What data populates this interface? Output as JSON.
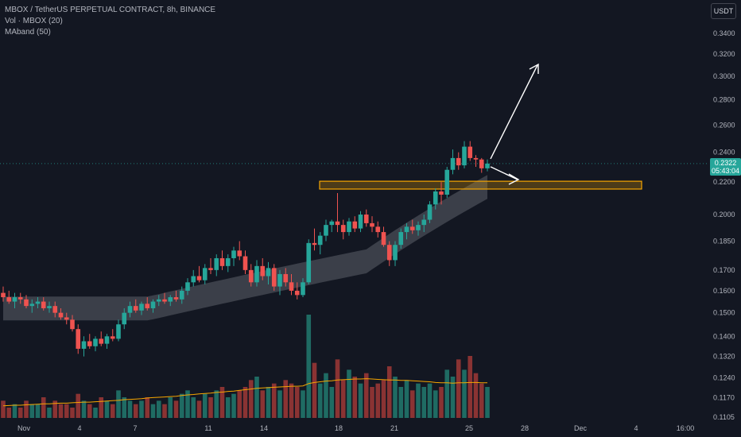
{
  "legend": {
    "title": "MBOX / TetherUS PERPETUAL CONTRACT, 8h, BINANCE",
    "vol": "Vol · MBOX (20)",
    "maband": "MAband (50)"
  },
  "currency_button": "USDT",
  "last_price": {
    "price": "0.2322",
    "countdown": "05:43:04"
  },
  "colors": {
    "up": "#26a69a",
    "down": "#ef5350",
    "bg": "#131722",
    "zone": "#f7a600",
    "axis_text": "#b2b5be"
  },
  "chart_data": {
    "type": "candlestick",
    "y_scale": "log",
    "y_ticks": [
      "0.3400",
      "0.3200",
      "0.3000",
      "0.2800",
      "0.2600",
      "0.2400",
      "0.2200",
      "0.2000",
      "0.1850",
      "0.1700",
      "0.1600",
      "0.1500",
      "0.1400",
      "0.1320",
      "0.1240",
      "0.1170",
      "0.1105"
    ],
    "x_ticks": [
      "Nov",
      "4",
      "7",
      "11",
      "14",
      "18",
      "21",
      "25",
      "28",
      "Dec",
      "4",
      "16:00"
    ],
    "last_price": 0.2322,
    "resistance_zone": [
      0.2155,
      0.2205
    ],
    "annotations": [
      "arrow-up",
      "arrow-down-right"
    ],
    "ohlc": [
      [
        0.159,
        0.162,
        0.155,
        0.157
      ],
      [
        0.157,
        0.16,
        0.154,
        0.155
      ],
      [
        0.155,
        0.159,
        0.152,
        0.157
      ],
      [
        0.157,
        0.159,
        0.154,
        0.156
      ],
      [
        0.156,
        0.158,
        0.152,
        0.153
      ],
      [
        0.153,
        0.156,
        0.15,
        0.154
      ],
      [
        0.154,
        0.157,
        0.152,
        0.155
      ],
      [
        0.155,
        0.157,
        0.151,
        0.152
      ],
      [
        0.152,
        0.155,
        0.15,
        0.153
      ],
      [
        0.153,
        0.155,
        0.148,
        0.15
      ],
      [
        0.15,
        0.152,
        0.147,
        0.148
      ],
      [
        0.148,
        0.15,
        0.145,
        0.147
      ],
      [
        0.147,
        0.149,
        0.142,
        0.143
      ],
      [
        0.143,
        0.145,
        0.133,
        0.135
      ],
      [
        0.135,
        0.14,
        0.132,
        0.138
      ],
      [
        0.138,
        0.141,
        0.135,
        0.136
      ],
      [
        0.136,
        0.14,
        0.134,
        0.139
      ],
      [
        0.139,
        0.142,
        0.136,
        0.137
      ],
      [
        0.137,
        0.141,
        0.135,
        0.14
      ],
      [
        0.14,
        0.143,
        0.138,
        0.139
      ],
      [
        0.139,
        0.147,
        0.138,
        0.145
      ],
      [
        0.145,
        0.152,
        0.143,
        0.15
      ],
      [
        0.15,
        0.155,
        0.148,
        0.153
      ],
      [
        0.153,
        0.156,
        0.15,
        0.151
      ],
      [
        0.151,
        0.155,
        0.149,
        0.154
      ],
      [
        0.154,
        0.157,
        0.151,
        0.152
      ],
      [
        0.152,
        0.156,
        0.15,
        0.155
      ],
      [
        0.155,
        0.158,
        0.153,
        0.156
      ],
      [
        0.156,
        0.159,
        0.154,
        0.155
      ],
      [
        0.155,
        0.158,
        0.153,
        0.157
      ],
      [
        0.157,
        0.16,
        0.155,
        0.156
      ],
      [
        0.156,
        0.162,
        0.154,
        0.16
      ],
      [
        0.16,
        0.166,
        0.158,
        0.164
      ],
      [
        0.164,
        0.17,
        0.162,
        0.167
      ],
      [
        0.167,
        0.172,
        0.164,
        0.165
      ],
      [
        0.165,
        0.173,
        0.163,
        0.171
      ],
      [
        0.171,
        0.176,
        0.168,
        0.17
      ],
      [
        0.17,
        0.178,
        0.167,
        0.176
      ],
      [
        0.176,
        0.18,
        0.17,
        0.172
      ],
      [
        0.172,
        0.178,
        0.169,
        0.176
      ],
      [
        0.176,
        0.182,
        0.172,
        0.18
      ],
      [
        0.18,
        0.185,
        0.175,
        0.177
      ],
      [
        0.177,
        0.18,
        0.168,
        0.17
      ],
      [
        0.17,
        0.173,
        0.162,
        0.164
      ],
      [
        0.164,
        0.175,
        0.162,
        0.172
      ],
      [
        0.172,
        0.176,
        0.165,
        0.167
      ],
      [
        0.167,
        0.174,
        0.163,
        0.171
      ],
      [
        0.171,
        0.173,
        0.16,
        0.162
      ],
      [
        0.162,
        0.17,
        0.158,
        0.168
      ],
      [
        0.168,
        0.171,
        0.162,
        0.164
      ],
      [
        0.164,
        0.168,
        0.158,
        0.16
      ],
      [
        0.16,
        0.164,
        0.156,
        0.158
      ],
      [
        0.158,
        0.166,
        0.157,
        0.164
      ],
      [
        0.164,
        0.186,
        0.163,
        0.184
      ],
      [
        0.184,
        0.192,
        0.18,
        0.183
      ],
      [
        0.183,
        0.19,
        0.178,
        0.188
      ],
      [
        0.188,
        0.197,
        0.185,
        0.194
      ],
      [
        0.194,
        0.197,
        0.19,
        0.196
      ],
      [
        0.196,
        0.213,
        0.19,
        0.194
      ],
      [
        0.194,
        0.197,
        0.186,
        0.19
      ],
      [
        0.19,
        0.198,
        0.188,
        0.196
      ],
      [
        0.196,
        0.199,
        0.19,
        0.192
      ],
      [
        0.192,
        0.202,
        0.19,
        0.2
      ],
      [
        0.2,
        0.203,
        0.193,
        0.195
      ],
      [
        0.195,
        0.199,
        0.19,
        0.193
      ],
      [
        0.193,
        0.196,
        0.187,
        0.19
      ],
      [
        0.19,
        0.193,
        0.182,
        0.183
      ],
      [
        0.183,
        0.185,
        0.172,
        0.175
      ],
      [
        0.175,
        0.185,
        0.172,
        0.183
      ],
      [
        0.183,
        0.192,
        0.181,
        0.19
      ],
      [
        0.19,
        0.195,
        0.186,
        0.193
      ],
      [
        0.193,
        0.197,
        0.189,
        0.191
      ],
      [
        0.191,
        0.196,
        0.188,
        0.194
      ],
      [
        0.194,
        0.2,
        0.19,
        0.197
      ],
      [
        0.197,
        0.208,
        0.195,
        0.206
      ],
      [
        0.206,
        0.216,
        0.203,
        0.214
      ],
      [
        0.214,
        0.22,
        0.206,
        0.212
      ],
      [
        0.212,
        0.23,
        0.21,
        0.228
      ],
      [
        0.228,
        0.242,
        0.225,
        0.236
      ],
      [
        0.236,
        0.24,
        0.228,
        0.231
      ],
      [
        0.231,
        0.248,
        0.229,
        0.244
      ],
      [
        0.244,
        0.248,
        0.234,
        0.236
      ],
      [
        0.236,
        0.238,
        0.23,
        0.235
      ],
      [
        0.235,
        0.236,
        0.226,
        0.229
      ],
      [
        0.229,
        0.235,
        0.227,
        0.2322
      ]
    ],
    "volume": [
      5,
      3,
      4,
      3,
      5,
      4,
      4,
      6,
      3,
      5,
      4,
      4,
      3,
      7,
      5,
      4,
      3,
      6,
      5,
      4,
      8,
      6,
      5,
      4,
      5,
      6,
      4,
      5,
      4,
      6,
      5,
      7,
      8,
      6,
      5,
      7,
      6,
      8,
      9,
      6,
      7,
      8,
      9,
      11,
      12,
      8,
      9,
      10,
      8,
      11,
      10,
      9,
      8,
      30,
      16,
      10,
      13,
      9,
      17,
      11,
      14,
      12,
      10,
      13,
      9,
      10,
      11,
      15,
      12,
      9,
      11,
      8,
      10,
      9,
      10,
      8,
      9,
      14,
      12,
      17,
      14,
      18,
      13,
      10,
      9
    ],
    "volume_ma": [
      3.5,
      3.6,
      3.7,
      3.7,
      3.8,
      3.9,
      4.0,
      4.1,
      4.1,
      4.2,
      4.3,
      4.3,
      4.4,
      4.5,
      4.6,
      4.6,
      4.7,
      4.8,
      4.9,
      5.0,
      5.1,
      5.3,
      5.4,
      5.5,
      5.6,
      5.8,
      5.9,
      6.0,
      6.1,
      6.2,
      6.3,
      6.5,
      6.7,
      6.8,
      7.0,
      7.1,
      7.2,
      7.4,
      7.5,
      7.7,
      7.8,
      8.0,
      8.2,
      8.4,
      8.6,
      8.7,
      8.8,
      8.9,
      9.0,
      9.1,
      9.2,
      9.2,
      9.3,
      10.0,
      10.3,
      10.5,
      10.7,
      10.8,
      11.0,
      11.1,
      11.2,
      11.3,
      11.3,
      11.4,
      11.3,
      11.2,
      11.1,
      11.0,
      11.0,
      10.9,
      10.9,
      10.8,
      10.7,
      10.6,
      10.5,
      10.3,
      10.2,
      10.2,
      10.1,
      10.2,
      10.2,
      10.3,
      10.3,
      10.2,
      10.2
    ]
  }
}
